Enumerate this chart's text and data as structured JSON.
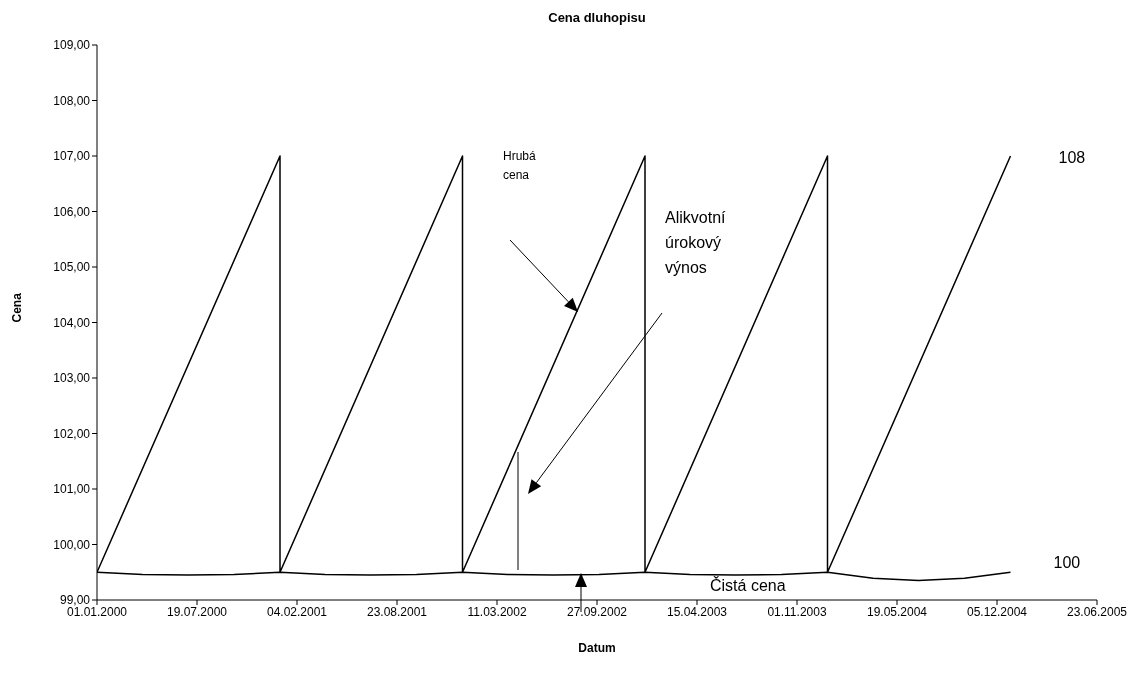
{
  "chart_data": {
    "type": "line",
    "title": "Cena dluhopisu",
    "xlabel": "Datum",
    "ylabel": "Cena",
    "series": [
      {
        "color": "#000000",
        "x": [
          "2000-01-01",
          "2001-01-01",
          "2001-01-01",
          "2002-01-01",
          "2002-01-01",
          "2003-01-01",
          "2003-01-01",
          "2004-01-01",
          "2004-01-01",
          "2005-01-01"
        ],
        "values": [
          99.5,
          107,
          99.5,
          107,
          99.5,
          107,
          99.5,
          107,
          99.5,
          107
        ]
      },
      {
        "color": "#000000",
        "x": [
          "2000-01-01",
          "2000-04-01",
          "2000-07-01",
          "2000-10-01",
          "2001-01-01",
          "2001-04-01",
          "2001-07-01",
          "2001-10-01",
          "2002-01-01",
          "2002-04-01",
          "2002-07-01",
          "2002-10-01",
          "2003-01-01",
          "2003-04-01",
          "2003-07-01",
          "2003-10-01",
          "2004-01-01",
          "2004-04-01",
          "2004-07-01",
          "2004-10-01",
          "2005-01-01"
        ],
        "values": [
          99.5,
          99.46,
          99.45,
          99.46,
          99.5,
          99.46,
          99.45,
          99.46,
          99.5,
          99.46,
          99.45,
          99.46,
          99.5,
          99.46,
          99.45,
          99.46,
          99.5,
          99.39,
          99.35,
          99.39,
          99.5
        ]
      }
    ],
    "annotations": [
      "Hrubá cena",
      "Alikvotní úrokový výnos",
      "Čistá cena",
      {
        "text": "108",
        "x": "2005-01-01",
        "y": 107
      },
      {
        "text": "100",
        "x": "2005-01-01",
        "y": 99.5
      }
    ],
    "xlim": [
      "2000-01-01",
      "2005-06-23"
    ],
    "xticks": [
      {
        "value": "2000-01-01",
        "label": "01.01.2000"
      },
      {
        "value": "2000-07-19",
        "label": "19.07.2000"
      },
      {
        "value": "2001-02-04",
        "label": "04.02.2001"
      },
      {
        "value": "2001-08-23",
        "label": "23.08.2001"
      },
      {
        "value": "2002-03-11",
        "label": "11.03.2002"
      },
      {
        "value": "2002-09-27",
        "label": "27.09.2002"
      },
      {
        "value": "2003-04-15",
        "label": "15.04.2003"
      },
      {
        "value": "2003-11-01",
        "label": "01.11.2003"
      },
      {
        "value": "2004-05-19",
        "label": "19.05.2004"
      },
      {
        "value": "2004-12-05",
        "label": "05.12.2004"
      },
      {
        "value": "2005-06-23",
        "label": "23.06.2005"
      }
    ],
    "ylim": [
      99,
      109
    ],
    "yticks": [
      {
        "value": 99,
        "label": "99,00"
      },
      {
        "value": 100,
        "label": "100,00"
      },
      {
        "value": 101,
        "label": "101,00"
      },
      {
        "value": 102,
        "label": "102,00"
      },
      {
        "value": 103,
        "label": "103,00"
      },
      {
        "value": 104,
        "label": "104,00"
      },
      {
        "value": 105,
        "label": "105,00"
      },
      {
        "value": 106,
        "label": "106,00"
      },
      {
        "value": 107,
        "label": "107,00"
      },
      {
        "value": 108,
        "label": "108,00"
      },
      {
        "value": 109,
        "label": "109,00"
      }
    ],
    "grid": false,
    "legend": false,
    "marker": "none",
    "line_style": "solid"
  }
}
